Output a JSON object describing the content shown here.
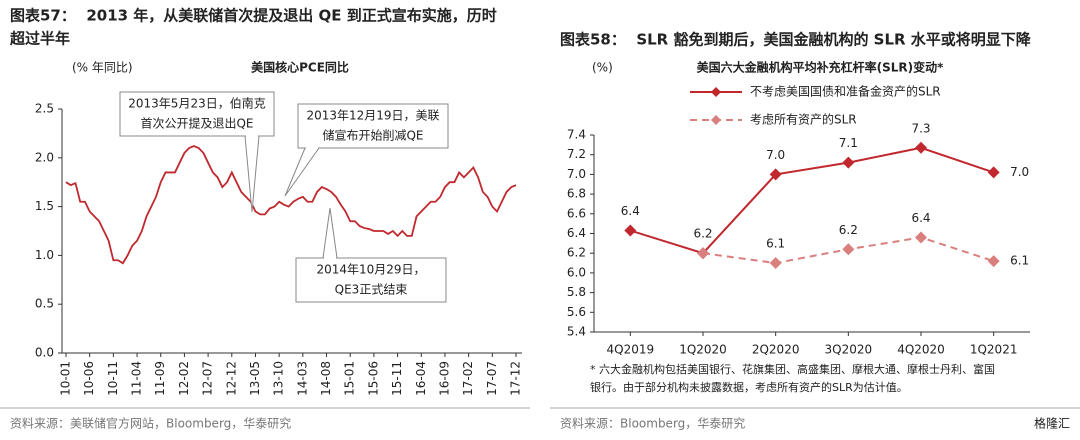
{
  "chart_data": [
    {
      "type": "line",
      "title": [
        "图表57：  2013 年，从美联储首次提及退出 QE 到正式宣布实施，历时",
        "超过半年"
      ],
      "subtitle": "美国核心PCE同比",
      "ylabel": "(% 年同比)",
      "categories": [
        "10-01",
        null,
        null,
        null,
        null,
        "10-06",
        null,
        null,
        null,
        null,
        "10-11",
        null,
        null,
        null,
        null,
        "11-04",
        null,
        null,
        null,
        null,
        "11-09",
        null,
        null,
        null,
        null,
        "12-02",
        null,
        null,
        null,
        null,
        "12-07",
        null,
        null,
        null,
        null,
        "12-12",
        null,
        null,
        null,
        null,
        "13-05",
        null,
        null,
        null,
        null,
        "13-10",
        null,
        null,
        null,
        null,
        "14-03",
        null,
        null,
        null,
        null,
        "14-08",
        null,
        null,
        null,
        null,
        "15-01",
        null,
        null,
        null,
        null,
        "15-06",
        null,
        null,
        null,
        null,
        "15-11",
        null,
        null,
        null,
        null,
        "16-04",
        null,
        null,
        null,
        null,
        "16-09",
        null,
        null,
        null,
        null,
        "17-02",
        null,
        null,
        null,
        null,
        "17-07",
        null,
        null,
        null,
        null,
        "17-12"
      ],
      "values": [
        1.75,
        1.72,
        1.74,
        1.55,
        1.55,
        1.45,
        1.4,
        1.35,
        1.25,
        1.15,
        0.95,
        0.95,
        0.92,
        1.0,
        1.1,
        1.15,
        1.25,
        1.4,
        1.5,
        1.6,
        1.75,
        1.85,
        1.85,
        1.85,
        1.95,
        2.05,
        2.1,
        2.12,
        2.1,
        2.05,
        1.95,
        1.85,
        1.8,
        1.7,
        1.75,
        1.85,
        1.75,
        1.65,
        1.6,
        1.55,
        1.45,
        1.42,
        1.42,
        1.48,
        1.5,
        1.55,
        1.52,
        1.5,
        1.55,
        1.58,
        1.6,
        1.55,
        1.55,
        1.65,
        1.7,
        1.68,
        1.65,
        1.6,
        1.52,
        1.45,
        1.35,
        1.35,
        1.3,
        1.28,
        1.27,
        1.25,
        1.25,
        1.25,
        1.22,
        1.25,
        1.2,
        1.25,
        1.2,
        1.2,
        1.4,
        1.45,
        1.5,
        1.55,
        1.55,
        1.6,
        1.7,
        1.75,
        1.75,
        1.85,
        1.8,
        1.85,
        1.9,
        1.8,
        1.65,
        1.6,
        1.5,
        1.45,
        1.55,
        1.65,
        1.7,
        1.72
      ],
      "color": "#c0282d",
      "ylim": [
        0,
        2.5
      ],
      "yticks": [
        {
          "value": 0,
          "label": "0.0"
        },
        0.5,
        {
          "value": 1,
          "label": "1.0"
        },
        1.5,
        {
          "value": 2,
          "label": "2.0"
        },
        2.5
      ],
      "annotations": [
        {
          "lines": [
            "2013年5月23日，伯南克",
            "首次公开提及退出QE"
          ]
        },
        {
          "lines": [
            "2013年12月19日，美联",
            "储宣布开始削减QE"
          ]
        },
        {
          "lines": [
            "2014年10月29日，",
            "QE3正式结束"
          ]
        }
      ],
      "source": "资料来源：美联储官方网站，Bloomberg，华泰研究"
    },
    {
      "type": "line",
      "title": [
        "图表58：  SLR 豁免到期后，美国金融机构的 SLR 水平或将明显下降"
      ],
      "subtitle": "美国六大金融机构平均补充杠杆率(SLR)变动*",
      "ylabel": "(%)",
      "categories": [
        "4Q2019",
        "1Q2020",
        "2Q2020",
        "3Q2020",
        "4Q2020",
        "1Q2021"
      ],
      "series": [
        {
          "name": "不考虑美国国债和准备金资产的SLR",
          "color": "#c0282d",
          "dashed": false,
          "values": [
            6.43,
            6.2,
            7.0,
            7.12,
            7.27,
            7.02
          ],
          "value_labels": [
            "6.4",
            "6.2",
            "7.0",
            "7.1",
            "7.3",
            "7.0"
          ]
        },
        {
          "name": "考虑所有资产的SLR",
          "color": "#d9807f",
          "dashed": true,
          "values": [
            null,
            6.2,
            6.1,
            6.24,
            6.36,
            6.12
          ],
          "value_labels": [
            null,
            null,
            "6.1",
            "6.2",
            "6.4",
            "6.1"
          ]
        }
      ],
      "ylim": [
        5.4,
        7.4
      ],
      "yticks": [
        5.4,
        5.6,
        5.8,
        {
          "value": 6,
          "label": "6.0"
        },
        6.2,
        6.4,
        6.6,
        6.8,
        {
          "value": 7,
          "label": "7.0"
        },
        7.2,
        7.4
      ],
      "legend": "top",
      "footnote": [
        "* 六大金融机构包括美国银行、花旗集团、高盛集团、摩根大通、摩根士丹利、富国",
        "银行。由于部分机构未披露数据，考虑所有资产的SLR为估计值。"
      ],
      "source": "资料来源：Bloomberg，华泰研究"
    }
  ],
  "watermark": "格隆汇"
}
